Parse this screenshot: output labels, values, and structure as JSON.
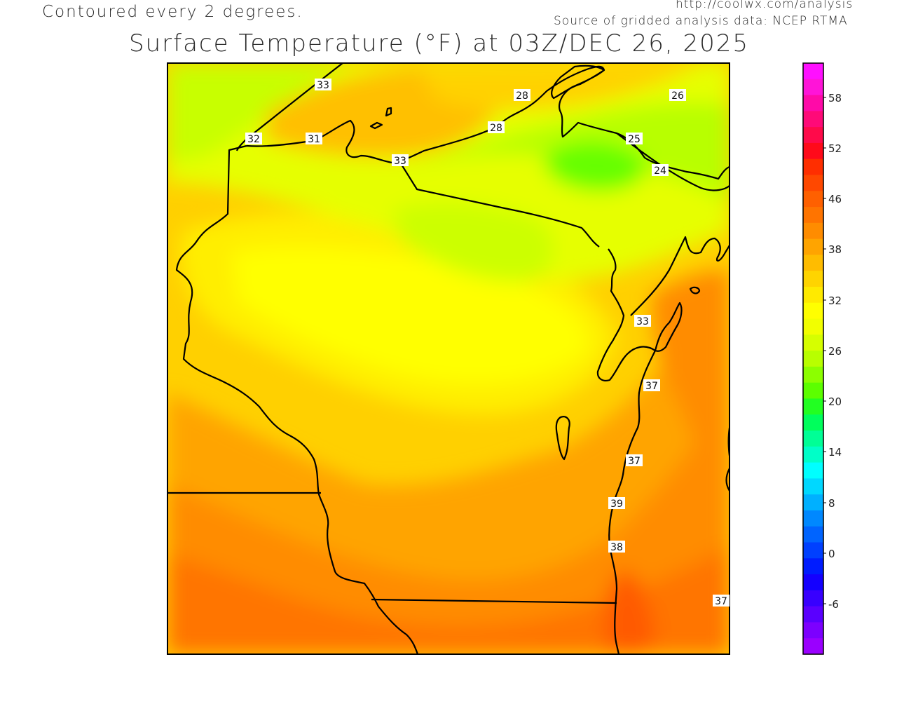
{
  "header": {
    "contour_note": "Contoured every 2 degrees.",
    "source_url": "http://coolwx.com/analysis",
    "source_line": "Source of gridded analysis data:  NCEP RTMA",
    "title": "Surface Temperature (°F) at 03Z/DEC 26, 2025"
  },
  "map": {
    "contour_labels": [
      "33",
      "28",
      "26",
      "32",
      "31",
      "28",
      "25",
      "33",
      "24",
      "33",
      "37",
      "37",
      "39",
      "38",
      "37"
    ]
  },
  "colorbar": {
    "tick_labels": [
      "58",
      "52",
      "46",
      "38",
      "32",
      "26",
      "20",
      "14",
      "8",
      "0",
      "-6"
    ],
    "colors": [
      "#ff10ff",
      "#ff14d8",
      "#ff0aa8",
      "#ff0a78",
      "#ff0a4a",
      "#ff0a1a",
      "#ff2e00",
      "#ff4800",
      "#ff6000",
      "#ff7400",
      "#ff8c00",
      "#ffa400",
      "#ffbc00",
      "#ffd400",
      "#ffea00",
      "#ffff00",
      "#f2ff00",
      "#d6ff00",
      "#b8ff00",
      "#8cff00",
      "#5cff00",
      "#22ff22",
      "#00ff5c",
      "#00ff96",
      "#00ffc8",
      "#00ffff",
      "#00d8ff",
      "#00b0ff",
      "#0088ff",
      "#0064ff",
      "#0040ff",
      "#001cff",
      "#1400ff",
      "#3800ff",
      "#5a00ff",
      "#7c00ff",
      "#9a00ff"
    ]
  },
  "colors": {
    "frame": "#000000",
    "border": "#000000"
  }
}
